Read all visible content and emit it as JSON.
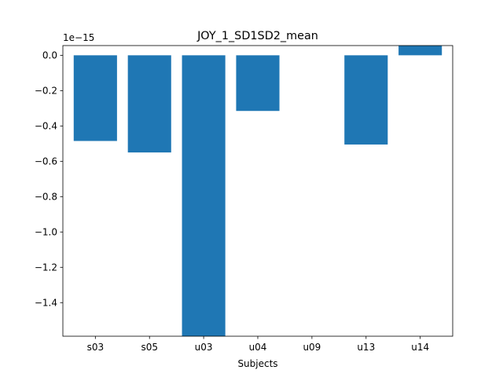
{
  "chart_data": {
    "type": "bar",
    "title": "JOY_1_SD1SD2_mean",
    "xlabel": "Subjects",
    "ylabel": "",
    "offset_text": "1e−15",
    "categories": [
      "s03",
      "s05",
      "u03",
      "u04",
      "u09",
      "u13",
      "u14"
    ],
    "values": [
      -0.485,
      -0.55,
      -1.59,
      -0.315,
      0.0,
      -0.505,
      0.055
    ],
    "value_scale": 1e-15,
    "ylim": [
      -1.59,
      0.055
    ],
    "yticks": [
      0.0,
      -0.2,
      -0.4,
      -0.6,
      -0.8,
      -1.0,
      -1.2,
      -1.4
    ],
    "ytick_labels": [
      "0.0",
      "−0.2",
      "−0.4",
      "−0.6",
      "−0.8",
      "−1.0",
      "−1.2",
      "−1.4"
    ],
    "grid": false,
    "bar_color": "#1f77b4"
  }
}
